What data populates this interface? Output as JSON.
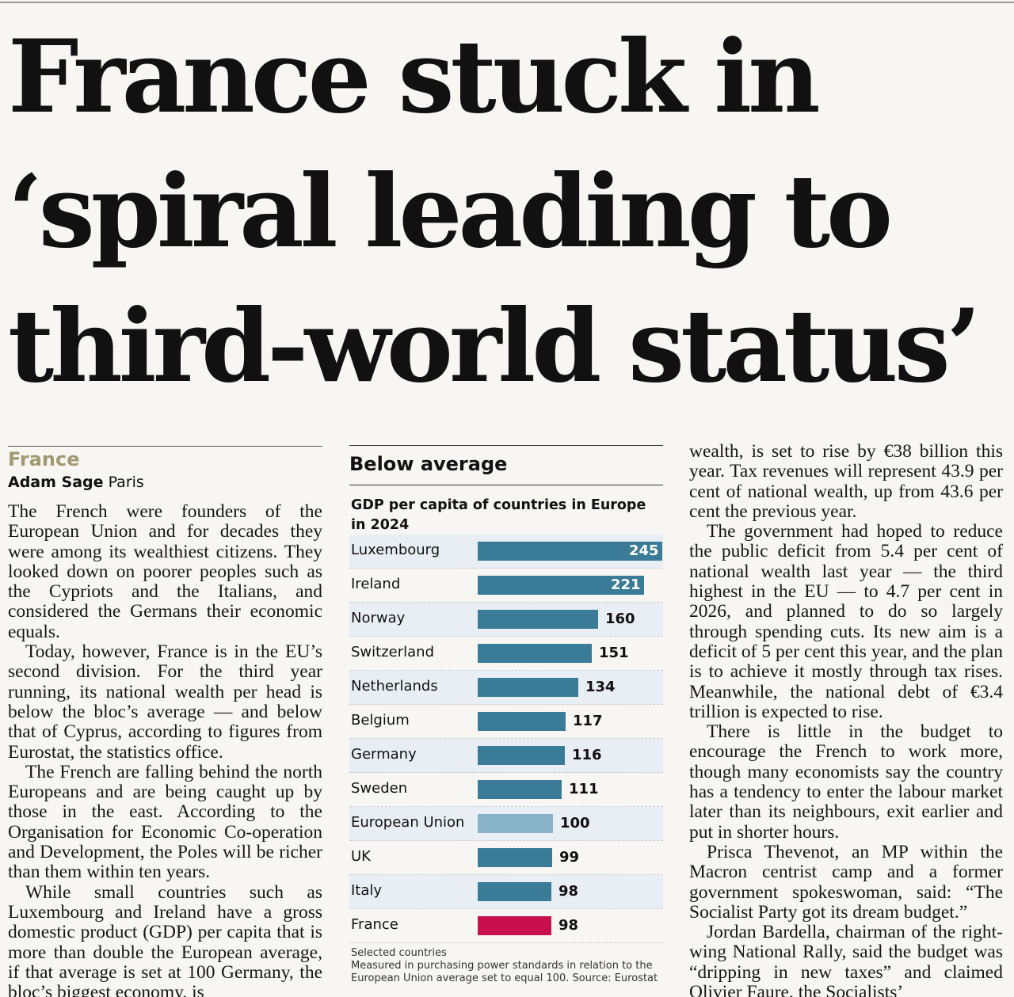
{
  "headline": [
    "France stuck in",
    "‘spiral leading to",
    "third-world status’"
  ],
  "kicker": "France",
  "byline": {
    "author": "Adam Sage",
    "location": "Paris"
  },
  "left_column": [
    "The French were founders of the European Union and for decades they were among its wealthiest citizens. They looked down on poorer peoples such as the Cypriots and the Italians, and considered the Germans their economic equals.",
    "Today, however, France is in the EU’s second division. For the third year running, its national wealth per head is below the bloc’s average — and below that of Cyprus, according to figures from Eurostat, the statistics office.",
    "The French are falling behind the north Europeans and are being caught up by those in the east. According to the Organisation for Economic Co-operation and Development, the Poles will be richer than them within ten years.",
    "While small countries such as Luxembourg and Ireland have a gross domestic product (GDP) per capita that is more than double the European average, if that average is set at 100 Germany, the bloc’s biggest economy, is"
  ],
  "right_column": [
    "wealth, is set to rise by €38 billion this year. Tax revenues will represent 43.9 per cent of national wealth, up from 43.6 per cent the previous year.",
    "The government had hoped to reduce the public deficit from 5.4 per cent of national wealth last year — the third highest in the EU — to 4.7 per cent in 2026, and planned to do so largely through spending cuts. Its new aim is a deficit of 5 per cent this year, and the plan is to achieve it mostly through tax rises. Meanwhile, the national debt of €3.4 trillion is expected to rise.",
    "There is little in the budget to encourage the French to work more, though many economists say the country has a tendency to enter the labour market later than its neighbours, exit earlier and put in shorter hours.",
    "Prisca Thevenot, an MP within the Macron centrist camp and a former government spokeswoman, said: “The Socialist Party got its dream budget.”",
    "Jordan Bardella, chairman of the right-wing National Rally, said the budget was “dripping in new taxes” and claimed Olivier Faure, the Socialists’"
  ],
  "chart_data": {
    "type": "bar",
    "orientation": "horizontal",
    "title": "Below average",
    "subtitle": "GDP per capita of countries in Europe in 2024",
    "categories": [
      "Luxembourg",
      "Ireland",
      "Norway",
      "Switzerland",
      "Netherlands",
      "Belgium",
      "Germany",
      "Sweden",
      "European Union",
      "UK",
      "Italy",
      "France"
    ],
    "values": [
      245,
      221,
      160,
      151,
      134,
      117,
      116,
      111,
      100,
      99,
      98,
      98
    ],
    "xlim": [
      0,
      245
    ],
    "colors": {
      "default": "#3a7b97",
      "european_union": "#88b3c8",
      "france": "#c8104f"
    },
    "note": [
      "Selected countries",
      "Measured in purchasing power standards in relation to the European Union average set to equal 100. Source: Eurostat"
    ]
  }
}
